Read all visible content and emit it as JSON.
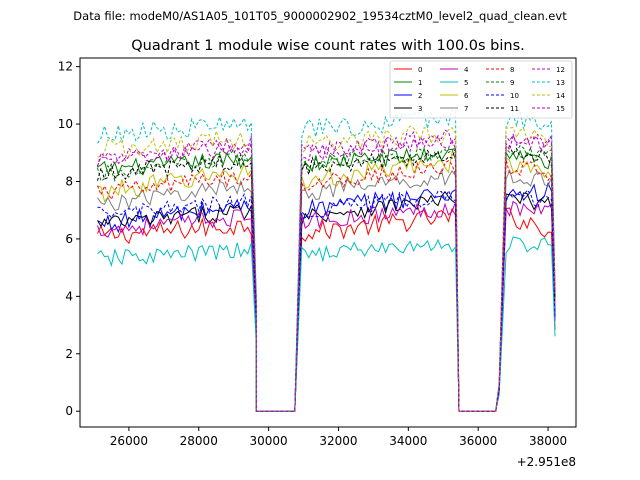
{
  "suptitle": "Data file: modeM0/AS1A05_101T05_9000002902_19534cztM0_level2_quad_clean.evt",
  "chart_data": {
    "type": "line",
    "title": "Quadrant 1 module wise count rates with 100.0s bins.",
    "xlabel": "",
    "ylabel": "",
    "x_offset_label": "+2.951e8",
    "xlim": [
      24600,
      38800
    ],
    "ylim": [
      -0.55,
      12.3
    ],
    "x_ticks": [
      26000,
      28000,
      30000,
      32000,
      34000,
      36000,
      38000
    ],
    "y_ticks": [
      0,
      2,
      4,
      6,
      8,
      10,
      12
    ],
    "grid": false,
    "legend_position": "top-right",
    "x_start": 25100,
    "bin_width": 100,
    "gaps": [
      {
        "drop": [
          29550,
          29650
        ],
        "zero": [
          29650,
          30750
        ],
        "rise": [
          30750,
          30950
        ]
      },
      {
        "drop": [
          35350,
          35450
        ],
        "zero": [
          35450,
          36500
        ],
        "rise": [
          36600,
          36800
        ]
      }
    ],
    "x_end": 38200,
    "series": [
      {
        "name": "0",
        "color": "#ff0000",
        "dashed": false,
        "base": [
          6.1,
          6.2,
          6.5,
          6.8
        ],
        "amp": 0.35,
        "end": 6.3
      },
      {
        "name": "1",
        "color": "#008000",
        "dashed": false,
        "base": [
          8.4,
          8.6,
          8.8,
          9.0
        ],
        "amp": 0.3,
        "end": 8.6
      },
      {
        "name": "2",
        "color": "#0000ff",
        "dashed": false,
        "base": [
          6.5,
          7.0,
          7.2,
          7.6
        ],
        "amp": 0.35,
        "end": 7.6
      },
      {
        "name": "3",
        "color": "#000000",
        "dashed": false,
        "base": [
          6.5,
          6.8,
          7.0,
          7.4
        ],
        "amp": 0.3,
        "end": 7.2
      },
      {
        "name": "4",
        "color": "#bf00bf",
        "dashed": false,
        "base": [
          6.3,
          6.6,
          6.8,
          7.1
        ],
        "amp": 0.3,
        "end": 7.0
      },
      {
        "name": "5",
        "color": "#00bfbf",
        "dashed": false,
        "base": [
          5.3,
          5.5,
          5.6,
          5.8
        ],
        "amp": 0.3,
        "end": 5.8
      },
      {
        "name": "6",
        "color": "#bfbf00",
        "dashed": false,
        "base": [
          7.6,
          8.0,
          8.4,
          8.7
        ],
        "amp": 0.35,
        "end": 8.4
      },
      {
        "name": "7",
        "color": "#808080",
        "dashed": false,
        "base": [
          7.2,
          7.6,
          7.9,
          8.2
        ],
        "amp": 0.3,
        "end": 8.0
      },
      {
        "name": "8",
        "color": "#ff0000",
        "dashed": true,
        "base": [
          7.6,
          7.9,
          8.2,
          8.5
        ],
        "amp": 0.3,
        "end": 8.3
      },
      {
        "name": "9",
        "color": "#008000",
        "dashed": true,
        "base": [
          8.2,
          8.6,
          8.9,
          9.1
        ],
        "amp": 0.3,
        "end": 8.8
      },
      {
        "name": "10",
        "color": "#0000ff",
        "dashed": true,
        "base": [
          6.8,
          7.0,
          7.3,
          7.5
        ],
        "amp": 0.3,
        "end": 7.3
      },
      {
        "name": "11",
        "color": "#000000",
        "dashed": true,
        "base": [
          8.3,
          8.5,
          8.7,
          9.0
        ],
        "amp": 0.3,
        "end": 8.7
      },
      {
        "name": "12",
        "color": "#bf00bf",
        "dashed": true,
        "base": [
          8.8,
          9.0,
          9.3,
          9.6
        ],
        "amp": 0.3,
        "end": 9.4
      },
      {
        "name": "13",
        "color": "#00bfbf",
        "dashed": true,
        "base": [
          9.6,
          9.8,
          10.0,
          10.2
        ],
        "amp": 0.35,
        "end": 10.1
      },
      {
        "name": "14",
        "color": "#bfbf00",
        "dashed": true,
        "base": [
          9.1,
          9.3,
          9.5,
          9.7
        ],
        "amp": 0.35,
        "end": 9.5
      },
      {
        "name": "15",
        "color": "#bf00bf",
        "dashed": true,
        "base": [
          8.7,
          9.0,
          9.2,
          9.4
        ],
        "amp": 0.3,
        "end": 9.2
      }
    ]
  }
}
